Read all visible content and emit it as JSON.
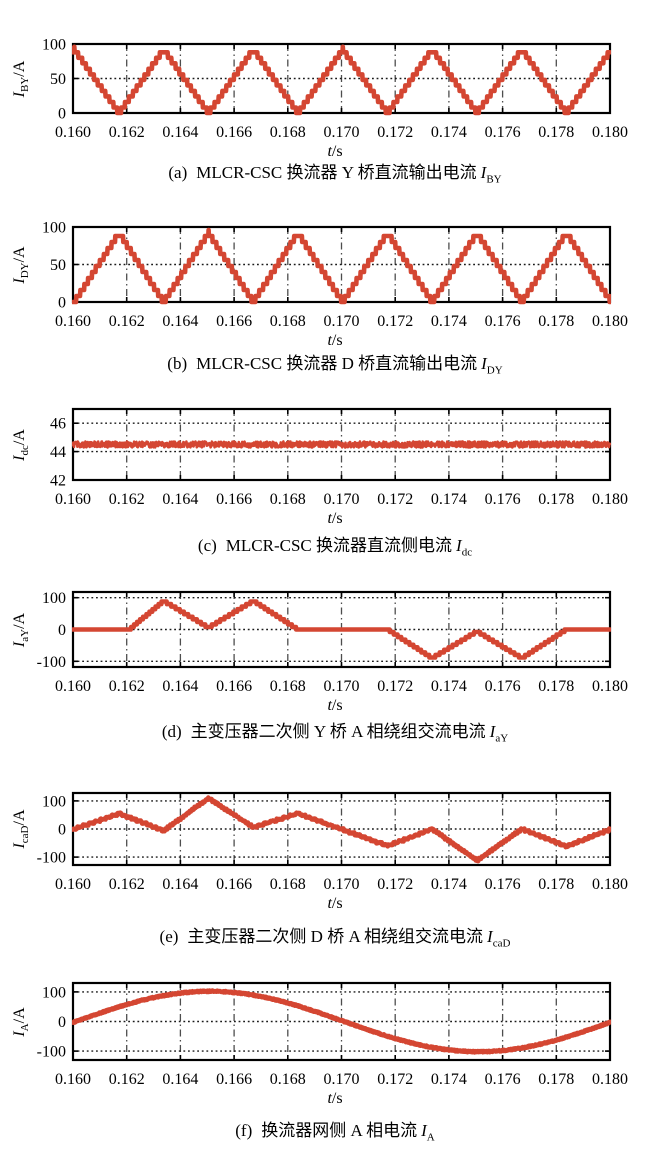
{
  "figure": {
    "background": "#ffffff",
    "text_color": "#000000",
    "waveform_color": "#d44632",
    "grid_color": "#4d4d4d",
    "dotted_line_color": "#1a1a1a"
  },
  "charts": [
    {
      "caption": {
        "index": "(a)",
        "text": "MLCR-CSC 换流器 Y 桥直流输出电流",
        "sym": "I",
        "sub": "BY"
      },
      "ylabel": {
        "sym": "I",
        "sub": "BY",
        "unit": "/A"
      },
      "xlabel": {
        "sym": "t",
        "unit": "/s"
      },
      "chart_data": {
        "type": "line",
        "xlim": [
          0.16,
          0.18
        ],
        "ylim": [
          0,
          100
        ],
        "x_tick_labels": [
          "0.160",
          "0.162",
          "0.164",
          "0.166",
          "0.168",
          "0.170",
          "0.172",
          "0.174",
          "0.176",
          "0.178",
          "0.180"
        ],
        "y_ticks": [
          {
            "value": 0,
            "label": "0"
          },
          {
            "value": 50,
            "label": "50"
          },
          {
            "value": 100,
            "label": "100"
          }
        ],
        "dotted_hlines": [
          50
        ],
        "grid": "vertical dash-dot every 0.002 s",
        "series": [
          {
            "name": "I_BY",
            "color": "#d44632",
            "shape": "triangle-staircase",
            "quantize_step": 8,
            "noise": 0,
            "stroke": 4.6,
            "points": [
              [
                0.15838,
                0
              ],
              [
                0.16005,
                92
              ],
              [
                0.16172,
                0
              ],
              [
                0.16338,
                92
              ],
              [
                0.16505,
                0
              ],
              [
                0.16672,
                92
              ],
              [
                0.16838,
                0
              ],
              [
                0.17005,
                92
              ],
              [
                0.17172,
                0
              ],
              [
                0.17338,
                92
              ],
              [
                0.17505,
                0
              ],
              [
                0.17672,
                92
              ],
              [
                0.17838,
                0
              ],
              [
                0.18005,
                92
              ],
              [
                0.18172,
                0
              ]
            ]
          }
        ]
      }
    },
    {
      "caption": {
        "index": "(b)",
        "text": "MLCR-CSC 换流器 D 桥直流输出电流",
        "sym": "I",
        "sub": "DY"
      },
      "ylabel": {
        "sym": "I",
        "sub": "DY",
        "unit": "/A"
      },
      "xlabel": {
        "sym": "t",
        "unit": "/s"
      },
      "chart_data": {
        "type": "line",
        "xlim": [
          0.16,
          0.18
        ],
        "ylim": [
          0,
          100
        ],
        "x_tick_labels": [
          "0.160",
          "0.162",
          "0.164",
          "0.166",
          "0.168",
          "0.170",
          "0.172",
          "0.174",
          "0.176",
          "0.178",
          "0.180"
        ],
        "y_ticks": [
          {
            "value": 0,
            "label": "0"
          },
          {
            "value": 50,
            "label": "50"
          },
          {
            "value": 100,
            "label": "100"
          }
        ],
        "dotted_hlines": [
          50
        ],
        "grid": "vertical dash-dot every 0.002 s",
        "series": [
          {
            "name": "I_DY",
            "color": "#d44632",
            "shape": "triangle-staircase",
            "quantize_step": 8,
            "noise": 0,
            "stroke": 4.6,
            "points": [
              [
                0.15838,
                92
              ],
              [
                0.16005,
                0
              ],
              [
                0.16172,
                92
              ],
              [
                0.16338,
                0
              ],
              [
                0.16505,
                92
              ],
              [
                0.16672,
                0
              ],
              [
                0.16838,
                92
              ],
              [
                0.17005,
                0
              ],
              [
                0.17172,
                92
              ],
              [
                0.17338,
                0
              ],
              [
                0.17505,
                92
              ],
              [
                0.17672,
                0
              ],
              [
                0.17838,
                92
              ],
              [
                0.18005,
                0
              ],
              [
                0.18172,
                92
              ]
            ]
          }
        ]
      }
    },
    {
      "caption": {
        "index": "(c)",
        "text": "MLCR-CSC 换流器直流侧电流",
        "sym": "I",
        "sub": "dc"
      },
      "ylabel": {
        "sym": "I",
        "sub": "dc",
        "unit": "/A"
      },
      "xlabel": {
        "sym": "t",
        "unit": "/s"
      },
      "chart_data": {
        "type": "line",
        "xlim": [
          0.16,
          0.18
        ],
        "ylim": [
          42,
          47
        ],
        "x_tick_labels": [
          "0.160",
          "0.162",
          "0.164",
          "0.166",
          "0.168",
          "0.170",
          "0.172",
          "0.174",
          "0.176",
          "0.178",
          "0.180"
        ],
        "y_ticks": [
          {
            "value": 42,
            "label": "42"
          },
          {
            "value": 44,
            "label": "44"
          },
          {
            "value": 46,
            "label": "46"
          }
        ],
        "dotted_hlines": [
          44,
          46
        ],
        "grid": "vertical dash-dot every 0.002 s",
        "series": [
          {
            "name": "I_dc",
            "color": "#d44632",
            "shape": "constant-with-ripple",
            "mean_value": 44.5,
            "quantize_step": 0,
            "noise": 0.42,
            "stroke": 2.6,
            "points": [
              [
                0.16,
                44.5
              ],
              [
                0.18,
                44.5
              ]
            ]
          }
        ]
      }
    },
    {
      "caption": {
        "index": "(d)",
        "text": "主变压器二次侧 Y 桥 A 相绕组交流电流",
        "sym": "I",
        "sub": "aY"
      },
      "ylabel": {
        "sym": "I",
        "sub": "aY",
        "unit": "/A"
      },
      "xlabel": {
        "sym": "t",
        "unit": "/s"
      },
      "chart_data": {
        "type": "line",
        "xlim": [
          0.16,
          0.18
        ],
        "ylim": [
          -118,
          118
        ],
        "x_tick_labels": [
          "0.160",
          "0.162",
          "0.164",
          "0.166",
          "0.168",
          "0.170",
          "0.172",
          "0.174",
          "0.176",
          "0.178",
          "0.180"
        ],
        "y_ticks": [
          {
            "value": -100,
            "label": "-100"
          },
          {
            "value": 0,
            "label": "0"
          },
          {
            "value": 100,
            "label": "100"
          }
        ],
        "dotted_hlines": [
          -100,
          0,
          100
        ],
        "grid": "vertical dash-dot every 0.002 s",
        "series": [
          {
            "name": "I_aY",
            "color": "#d44632",
            "shape": "gated-triangle-staircase",
            "quantize_step": 8,
            "noise": 0,
            "stroke": 4.6,
            "points": [
              [
                0.159,
                0
              ],
              [
                0.1621,
                0
              ],
              [
                0.16338,
                90
              ],
              [
                0.16505,
                6
              ],
              [
                0.16672,
                90
              ],
              [
                0.16838,
                0
              ],
              [
                0.17172,
                0
              ],
              [
                0.17338,
                -90
              ],
              [
                0.17505,
                -6
              ],
              [
                0.17672,
                -90
              ],
              [
                0.17838,
                0
              ],
              [
                0.181,
                0
              ]
            ]
          }
        ]
      }
    },
    {
      "caption": {
        "index": "(e)",
        "text": "主变压器二次侧 D 桥 A 相绕组交流电流",
        "sym": "I",
        "sub": "caD"
      },
      "ylabel": {
        "sym": "I",
        "sub": "caD",
        "unit": "/A"
      },
      "xlabel": {
        "sym": "t",
        "unit": "/s"
      },
      "chart_data": {
        "type": "line",
        "xlim": [
          0.16,
          0.18
        ],
        "ylim": [
          -128,
          128
        ],
        "x_tick_labels": [
          "0.160",
          "0.162",
          "0.164",
          "0.166",
          "0.168",
          "0.170",
          "0.172",
          "0.174",
          "0.176",
          "0.178",
          "0.180"
        ],
        "y_ticks": [
          {
            "value": -100,
            "label": "-100"
          },
          {
            "value": 0,
            "label": "0"
          },
          {
            "value": 100,
            "label": "100"
          }
        ],
        "dotted_hlines": [
          -100,
          0,
          100
        ],
        "grid": "vertical dash-dot every 0.002 s",
        "series": [
          {
            "name": "I_caD",
            "color": "#d44632",
            "shape": "stepped-triangle",
            "quantize_step": 7,
            "noise": 5,
            "stroke": 4.4,
            "points": [
              [
                0.15838,
                -55
              ],
              [
                0.16172,
                55
              ],
              [
                0.16338,
                -6
              ],
              [
                0.16505,
                110
              ],
              [
                0.16672,
                6
              ],
              [
                0.16838,
                55
              ],
              [
                0.17172,
                -60
              ],
              [
                0.17338,
                0
              ],
              [
                0.17505,
                -112
              ],
              [
                0.17672,
                0
              ],
              [
                0.17838,
                -62
              ],
              [
                0.18005,
                0
              ]
            ]
          }
        ]
      }
    },
    {
      "caption": {
        "index": "(f)",
        "text": "换流器网侧 A 相电流",
        "sym": "I",
        "sub": "A"
      },
      "ylabel": {
        "sym": "I",
        "sub": "A",
        "unit": "/A"
      },
      "xlabel": {
        "sym": "t",
        "unit": "/s"
      },
      "chart_data": {
        "type": "line",
        "xlim": [
          0.16,
          0.18
        ],
        "ylim": [
          -130,
          130
        ],
        "x_tick_labels": [
          "0.160",
          "0.162",
          "0.164",
          "0.166",
          "0.168",
          "0.170",
          "0.172",
          "0.174",
          "0.176",
          "0.178",
          "0.180"
        ],
        "y_ticks": [
          {
            "value": -100,
            "label": "-100"
          },
          {
            "value": 0,
            "label": "0"
          },
          {
            "value": 100,
            "label": "100"
          }
        ],
        "dotted_hlines": [
          -100,
          0,
          100
        ],
        "grid": "vertical dash-dot every 0.002 s",
        "series": [
          {
            "name": "I_A",
            "color": "#d44632",
            "shape": "sine",
            "sine": {
              "amplitude": 102,
              "frequency_hz": 50,
              "zero_crossing_t": 0.1601,
              "offset": 0
            },
            "quantize_step": 0,
            "noise": 5,
            "stroke": 4.6
          }
        ]
      }
    }
  ]
}
